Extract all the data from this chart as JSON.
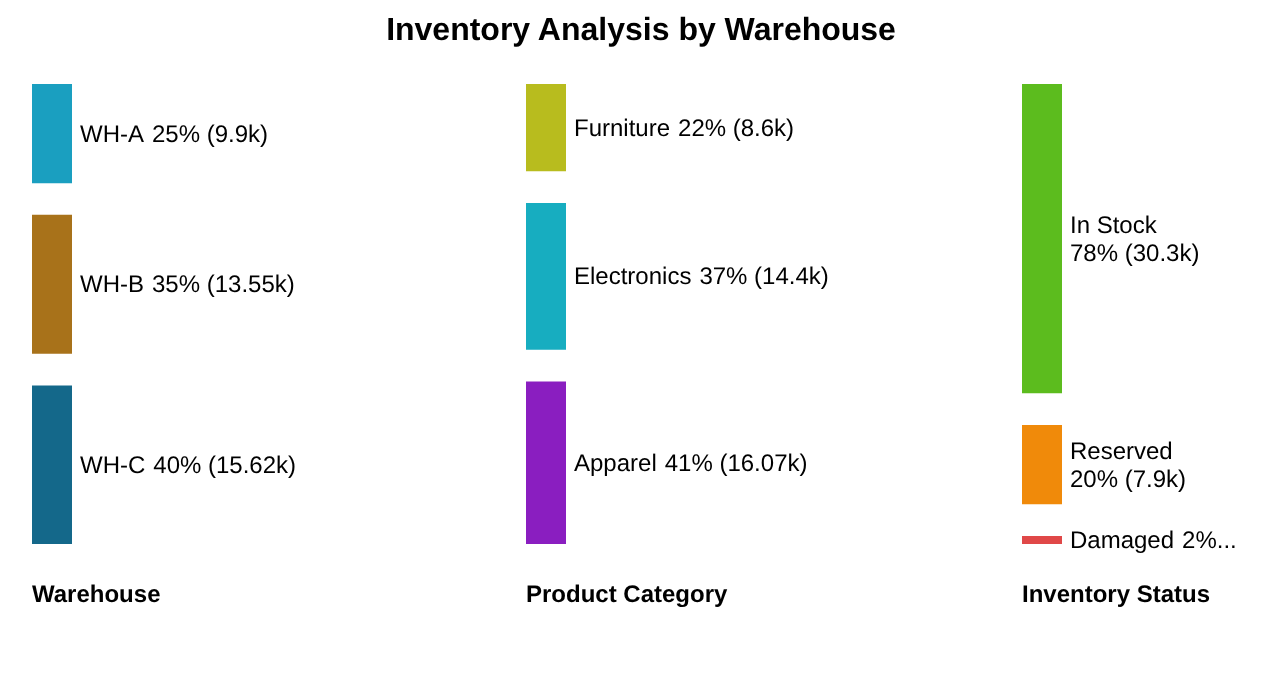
{
  "chart_data": [
    {
      "type": "other",
      "title": "Inventory Analysis by Warehouse",
      "xlabel": "Warehouse",
      "categories": [
        "WH-A",
        "WH-B",
        "WH-C"
      ],
      "values": [
        25,
        35,
        40
      ],
      "value_labels": [
        "25% (9.9k)",
        "35% (13.55k)",
        "40% (15.62k)"
      ],
      "colors": [
        "#1a9fc0",
        "#a8721a",
        "#14688a"
      ]
    },
    {
      "type": "other",
      "xlabel": "Product Category",
      "categories": [
        "Furniture",
        "Electronics",
        "Apparel"
      ],
      "values": [
        22,
        37,
        41
      ],
      "value_labels": [
        "22% (8.6k)",
        "37% (14.4k)",
        "41% (16.07k)"
      ],
      "colors": [
        "#b8bc1e",
        "#17adc0",
        "#8a1ec0"
      ]
    },
    {
      "type": "other",
      "xlabel": "Inventory Status",
      "categories": [
        "In Stock",
        "Reserved",
        "Damaged"
      ],
      "values": [
        78,
        20,
        2
      ],
      "value_labels": [
        "78% (30.3k)",
        "20% (7.9k)",
        "2%..."
      ],
      "colors": [
        "#5cbc1e",
        "#f08a0a",
        "#e04848"
      ]
    }
  ]
}
